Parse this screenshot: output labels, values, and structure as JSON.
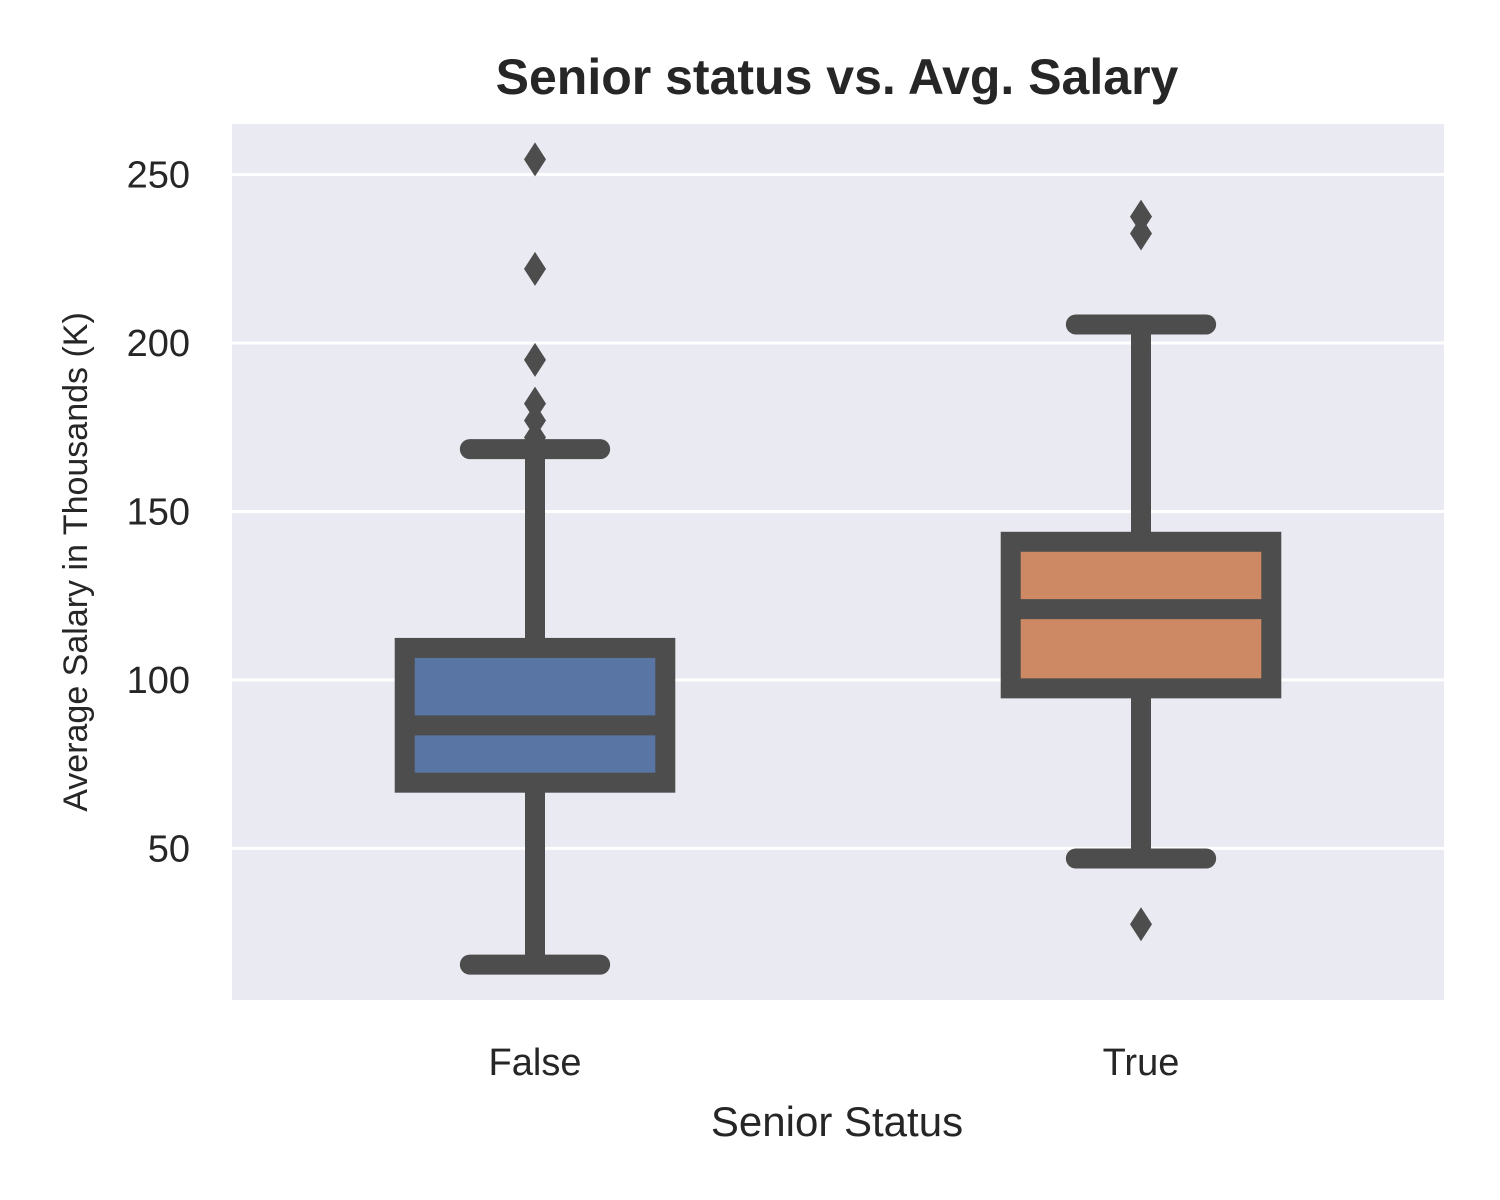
{
  "chart_data": {
    "type": "box",
    "title": "Senior status vs. Avg. Salary",
    "xlabel": "Senior Status",
    "ylabel": "Average Salary in Thousands (K)",
    "categories": [
      "False",
      "True"
    ],
    "yticks": [
      50,
      100,
      150,
      200,
      250
    ],
    "ylim": [
      5,
      265
    ],
    "grid": true,
    "legend": "none",
    "colors": {
      "background": "#eaeaf2",
      "grid": "#ffffff",
      "edge": "#4d4d4d",
      "boxes": [
        "#5975a4",
        "#cc8963"
      ]
    },
    "boxes": [
      {
        "category": "False",
        "whisker_low": 15.5,
        "q1": 69.5,
        "median": 86.5,
        "q3": 109.5,
        "whisker_high": 168.5,
        "outliers": [
          172,
          177,
          182,
          195,
          222,
          254.5
        ]
      },
      {
        "category": "True",
        "whisker_low": 47,
        "q1": 97.5,
        "median": 121,
        "q3": 141,
        "whisker_high": 205.5,
        "outliers": [
          27.5,
          232.5,
          237.5
        ]
      }
    ]
  }
}
